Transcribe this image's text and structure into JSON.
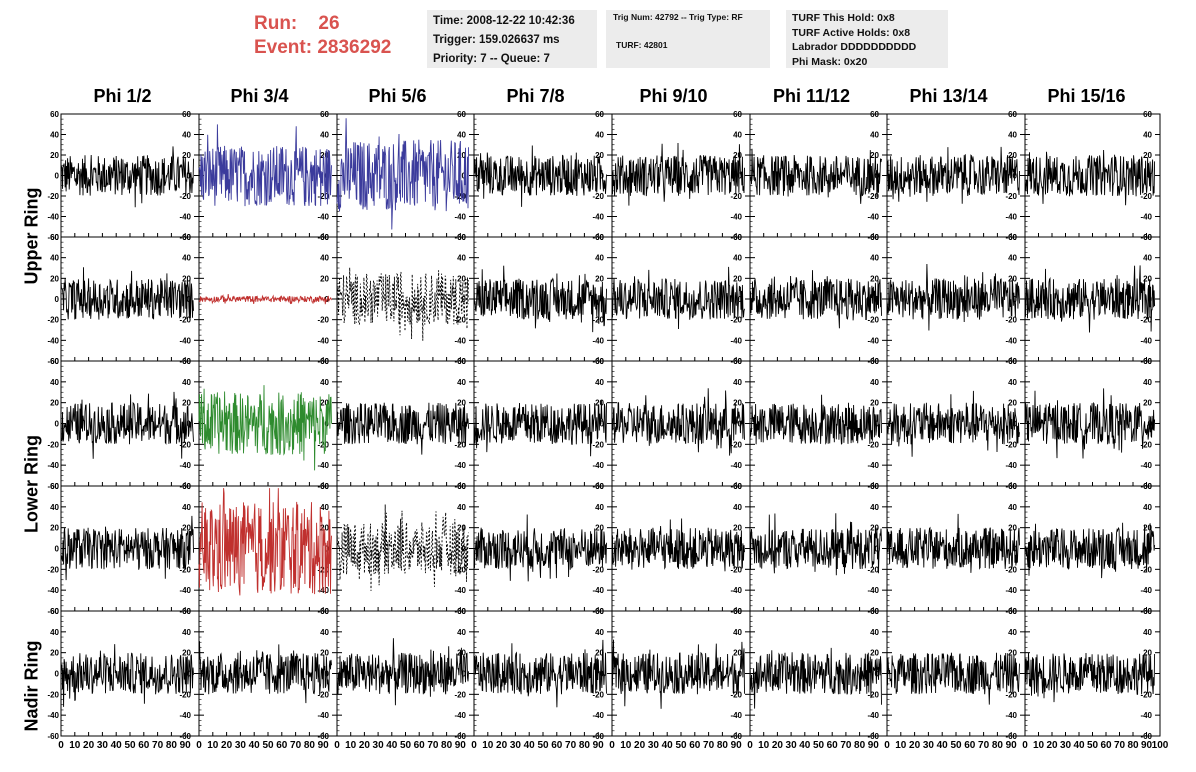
{
  "header": {
    "run_label": "Run:",
    "run_value": "26",
    "event_label": "Event:",
    "event_value": "2836292",
    "time": "Time: 2008-12-22 10:42:36",
    "trigger": "Trigger: 159.026637 ms",
    "priority": "Priority: 7 -- Queue: 7",
    "trig_num": "Trig Num: 42792 -- Trig Type: RF",
    "turf": "TURF: 42801",
    "turf_this_hold": "TURF This Hold: 0x8",
    "turf_active_holds": "TURF Active Holds: 0x8",
    "labrador": "Labrador DDDDDDDDDD",
    "phi_mask": "Phi Mask: 0x20"
  },
  "chart_data": {
    "type": "line",
    "columns": [
      "Phi 1/2",
      "Phi 3/4",
      "Phi 5/6",
      "Phi 7/8",
      "Phi 9/10",
      "Phi 11/12",
      "Phi 13/14",
      "Phi 15/16"
    ],
    "rows": [
      "Upper Ring",
      "Upper Ring",
      "Lower Ring",
      "Lower Ring",
      "Nadir Ring"
    ],
    "row_labels": [
      "Upper Ring",
      "Lower Ring",
      "Nadir Ring"
    ],
    "xlim": [
      0,
      100
    ],
    "ylim": [
      -60,
      60
    ],
    "x_ticks": [
      0,
      10,
      20,
      30,
      40,
      50,
      60,
      70,
      80,
      90,
      100
    ],
    "x_tick_labels": [
      "0",
      "10",
      "20",
      "30",
      "40",
      "50",
      "60",
      "70",
      "80",
      "90",
      "100"
    ],
    "y_ticks": [
      -60,
      -40,
      -20,
      0,
      20,
      40,
      60
    ],
    "y_tick_labels": [
      "-60",
      "-40",
      "-20",
      "0",
      "20",
      "40",
      "60"
    ],
    "trace_colors": {
      "normal": "#000000",
      "blue": "#3b3b9c",
      "red": "#c0302e",
      "green": "#2e8b2e"
    },
    "highlighted": [
      {
        "row": 0,
        "col": 1,
        "color": "blue",
        "amplitude": 30
      },
      {
        "row": 0,
        "col": 2,
        "color": "blue",
        "amplitude": 35
      },
      {
        "row": 1,
        "col": 1,
        "color": "red",
        "amplitude": 3
      },
      {
        "row": 1,
        "col": 2,
        "color": "dashed",
        "amplitude": 25
      },
      {
        "row": 2,
        "col": 1,
        "color": "green",
        "amplitude": 30
      },
      {
        "row": 3,
        "col": 1,
        "color": "red",
        "amplitude": 45
      },
      {
        "row": 3,
        "col": 2,
        "color": "dashed",
        "amplitude": 25
      }
    ],
    "default_amplitude": 20,
    "samples_per_trace": 260
  }
}
